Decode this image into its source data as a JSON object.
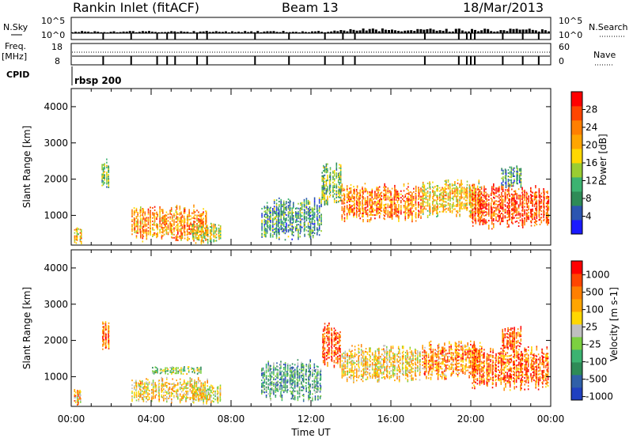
{
  "header": {
    "station": "Rankin Inlet (fitACF)",
    "beam": "Beam 13",
    "date": "18/Mar/2013"
  },
  "panels": {
    "nsky_label": "N.Sky",
    "nsky_top": "10^5",
    "nsky_bottom": "10^0",
    "nsearch_label": "N.Search",
    "nsearch_top": "10^5",
    "nsearch_bottom": "10^0",
    "freq_label": "Freq.",
    "freq_unit": "[MHz]",
    "freq_top": "18",
    "freq_bottom": "8",
    "nave_label": "Nave",
    "nave_top": "60",
    "nave_bottom": "0",
    "cpid_label": "CPID",
    "cpid_value": "rbsp 200"
  },
  "chart_data": [
    {
      "type": "heatmap",
      "quantity": "Power",
      "xlabel": "Time UT",
      "ylabel": "Slant Range [km]",
      "x_ticks": [
        "00:00",
        "04:00",
        "08:00",
        "12:00",
        "16:00",
        "20:00",
        "00:00"
      ],
      "xlim_hours": [
        0,
        24
      ],
      "y_ticks": [
        1000,
        2000,
        3000,
        4000
      ],
      "ylim": [
        180,
        4500
      ],
      "colorbar": {
        "label": "Power [dB]",
        "ticks": [
          "4",
          "8",
          "12",
          "16",
          "20",
          "24",
          "28"
        ],
        "colors": [
          "#1a1aff",
          "#2c55b0",
          "#2e8b57",
          "#3cb371",
          "#9acd32",
          "#ffd700",
          "#ffa500",
          "#ff7f00",
          "#ff4500",
          "#ff0000"
        ]
      },
      "scatter_regions": [
        {
          "t0": 0.1,
          "t1": 0.5,
          "r0": 200,
          "r1": 700,
          "level": 0.6
        },
        {
          "t0": 1.5,
          "t1": 1.9,
          "r0": 1700,
          "r1": 2600,
          "level": 0.4
        },
        {
          "t0": 3.0,
          "t1": 6.8,
          "r0": 250,
          "r1": 1300,
          "level": 0.7
        },
        {
          "t0": 6.0,
          "t1": 7.5,
          "r0": 200,
          "r1": 800,
          "level": 0.5
        },
        {
          "t0": 9.5,
          "t1": 12.5,
          "r0": 300,
          "r1": 1500,
          "level": 0.3
        },
        {
          "t0": 12.5,
          "t1": 13.5,
          "r0": 1200,
          "r1": 2500,
          "level": 0.4
        },
        {
          "t0": 13.5,
          "t1": 17.5,
          "r0": 800,
          "r1": 1900,
          "level": 0.75
        },
        {
          "t0": 17.5,
          "t1": 20.5,
          "r0": 900,
          "r1": 2000,
          "level": 0.6
        },
        {
          "t0": 20.0,
          "t1": 23.9,
          "r0": 600,
          "r1": 1900,
          "level": 0.85
        },
        {
          "t0": 21.5,
          "t1": 22.5,
          "r0": 1700,
          "r1": 2400,
          "level": 0.3
        }
      ]
    },
    {
      "type": "heatmap",
      "quantity": "Velocity",
      "xlabel": "Time UT",
      "ylabel": "Slant Range [km]",
      "x_ticks": [
        "00:00",
        "04:00",
        "08:00",
        "12:00",
        "16:00",
        "20:00",
        "00:00"
      ],
      "xlim_hours": [
        0,
        24
      ],
      "y_ticks": [
        1000,
        2000,
        3000,
        4000
      ],
      "ylim": [
        180,
        4500
      ],
      "colorbar": {
        "label": "Velocity [m s-1]",
        "ticks": [
          "1000",
          "500",
          "100",
          "25",
          "-25",
          "-100",
          "-500",
          "-1000"
        ],
        "colors": [
          "#2040c0",
          "#3060a8",
          "#2e8b57",
          "#3cb371",
          "#7cd040",
          "#bfbfbf",
          "#ffd700",
          "#ffa500",
          "#ff7f00",
          "#ff4500",
          "#ff0000"
        ]
      },
      "scatter_regions": [
        {
          "t0": 0.1,
          "t1": 0.5,
          "r0": 200,
          "r1": 700,
          "level": 0.65
        },
        {
          "t0": 1.5,
          "t1": 1.9,
          "r0": 1700,
          "r1": 2600,
          "level": 0.8
        },
        {
          "t0": 3.0,
          "t1": 6.8,
          "r0": 250,
          "r1": 1000,
          "level": 0.6
        },
        {
          "t0": 4.0,
          "t1": 6.5,
          "r0": 1050,
          "r1": 1300,
          "level": 0.45
        },
        {
          "t0": 6.0,
          "t1": 7.5,
          "r0": 200,
          "r1": 800,
          "level": 0.55
        },
        {
          "t0": 9.5,
          "t1": 12.5,
          "r0": 300,
          "r1": 1500,
          "level": 0.3
        },
        {
          "t0": 12.5,
          "t1": 13.5,
          "r0": 1200,
          "r1": 2500,
          "level": 0.85
        },
        {
          "t0": 13.5,
          "t1": 17.5,
          "r0": 800,
          "r1": 1900,
          "level": 0.6
        },
        {
          "t0": 17.5,
          "t1": 20.5,
          "r0": 900,
          "r1": 2000,
          "level": 0.75
        },
        {
          "t0": 20.0,
          "t1": 23.9,
          "r0": 600,
          "r1": 1900,
          "level": 0.8
        },
        {
          "t0": 21.5,
          "t1": 22.5,
          "r0": 1700,
          "r1": 2400,
          "level": 0.85
        }
      ]
    }
  ]
}
